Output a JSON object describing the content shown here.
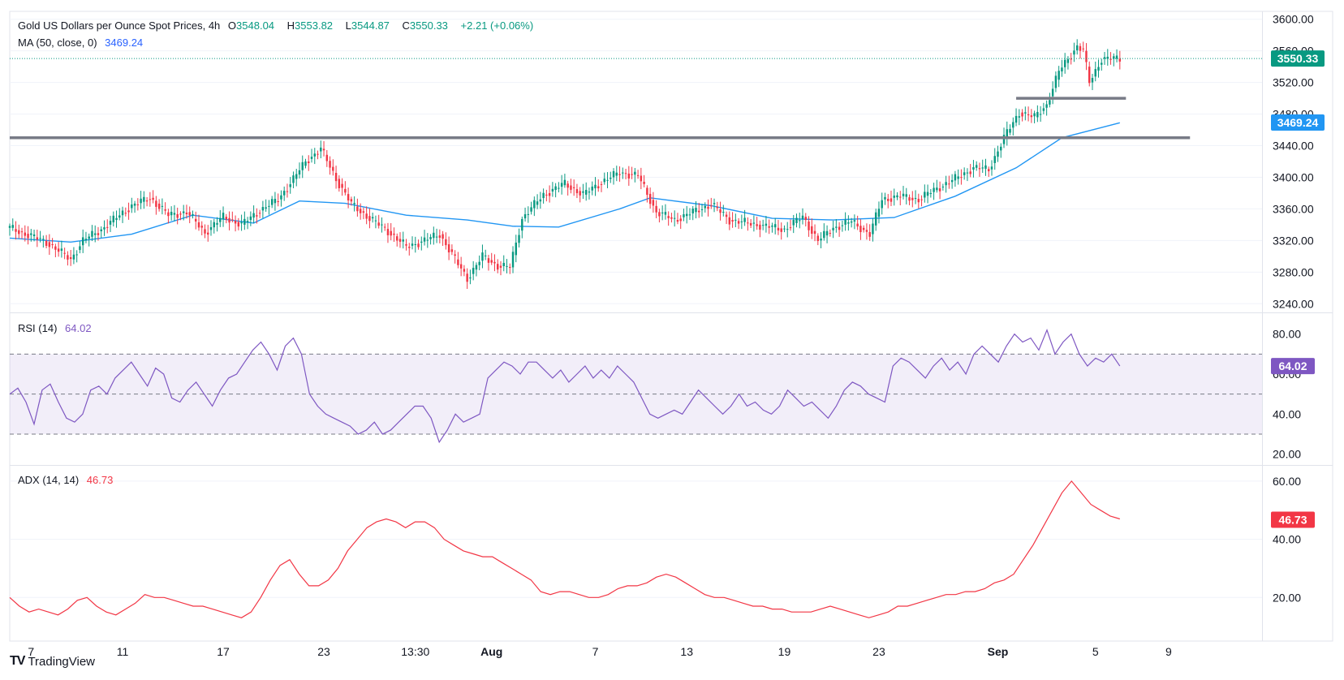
{
  "header": {
    "symbol": "Gold US Dollars per Ounce Spot Prices, 4h",
    "open_label": "O",
    "open": "3548.04",
    "high_label": "H",
    "high": "3553.82",
    "low_label": "L",
    "low": "3544.87",
    "close_label": "C",
    "close": "3550.33",
    "change": "+2.21 (+0.06%)"
  },
  "ma_legend": {
    "label": "MA (50, close, 0)",
    "value": "3469.24"
  },
  "rsi_legend": {
    "label": "RSI (14)",
    "value": "64.02"
  },
  "adx_legend": {
    "label": "ADX (14, 14)",
    "value": "46.73"
  },
  "brand": {
    "logo": "TV",
    "name": "TradingView"
  },
  "colors": {
    "up": "#089981",
    "down": "#f23645",
    "ma": "#2196f3",
    "rsi": "#7e57c2",
    "adx": "#f23645",
    "support": "#787b86"
  },
  "chart_data": [
    {
      "type": "candlestick",
      "title": "Gold US Dollars per Ounce Spot Prices, 4h",
      "ylim": [
        3230,
        3610
      ],
      "yticks": [
        3240,
        3280,
        3320,
        3360,
        3400,
        3440,
        3480,
        3520,
        3560,
        3600
      ],
      "xtick_labels": [
        "7",
        "11",
        "17",
        "23",
        "13:30",
        "Aug",
        "7",
        "13",
        "19",
        "23",
        "Sep",
        "5",
        "9"
      ],
      "price_label": "3550.33",
      "ma_label": "3469.24",
      "close_path": [
        [
          0,
          3336
        ],
        [
          12,
          3318
        ],
        [
          20,
          3296
        ],
        [
          24,
          3320
        ],
        [
          30,
          3334
        ],
        [
          40,
          3364
        ],
        [
          46,
          3374
        ],
        [
          52,
          3352
        ],
        [
          58,
          3356
        ],
        [
          64,
          3330
        ],
        [
          70,
          3350
        ],
        [
          76,
          3340
        ],
        [
          82,
          3358
        ],
        [
          88,
          3372
        ],
        [
          93,
          3398
        ],
        [
          97,
          3420
        ],
        [
          102,
          3436
        ],
        [
          107,
          3398
        ],
        [
          112,
          3366
        ],
        [
          118,
          3348
        ],
        [
          124,
          3332
        ],
        [
          130,
          3312
        ],
        [
          136,
          3320
        ],
        [
          141,
          3328
        ],
        [
          146,
          3296
        ],
        [
          150,
          3272
        ],
        [
          155,
          3300
        ],
        [
          160,
          3288
        ],
        [
          164,
          3286
        ],
        [
          168,
          3348
        ],
        [
          175,
          3378
        ],
        [
          182,
          3392
        ],
        [
          188,
          3378
        ],
        [
          194,
          3394
        ],
        [
          200,
          3406
        ],
        [
          206,
          3402
        ],
        [
          212,
          3356
        ],
        [
          218,
          3346
        ],
        [
          224,
          3356
        ],
        [
          230,
          3366
        ],
        [
          236,
          3346
        ],
        [
          242,
          3342
        ],
        [
          248,
          3338
        ],
        [
          254,
          3334
        ],
        [
          260,
          3350
        ],
        [
          265,
          3320
        ],
        [
          270,
          3336
        ],
        [
          276,
          3344
        ],
        [
          282,
          3328
        ],
        [
          286,
          3372
        ],
        [
          292,
          3376
        ],
        [
          298,
          3372
        ],
        [
          304,
          3386
        ],
        [
          310,
          3398
        ],
        [
          316,
          3412
        ],
        [
          321,
          3410
        ],
        [
          326,
          3450
        ],
        [
          331,
          3482
        ],
        [
          336,
          3476
        ],
        [
          340,
          3492
        ],
        [
          344,
          3534
        ],
        [
          350,
          3566
        ],
        [
          352,
          3560
        ],
        [
          354,
          3520
        ],
        [
          358,
          3550
        ],
        [
          364,
          3550
        ]
      ],
      "ma_path": [
        [
          0,
          3323
        ],
        [
          20,
          3318
        ],
        [
          40,
          3328
        ],
        [
          60,
          3352
        ],
        [
          80,
          3342
        ],
        [
          95,
          3370
        ],
        [
          110,
          3367
        ],
        [
          130,
          3352
        ],
        [
          150,
          3346
        ],
        [
          165,
          3338
        ],
        [
          180,
          3337
        ],
        [
          200,
          3360
        ],
        [
          210,
          3374
        ],
        [
          230,
          3364
        ],
        [
          250,
          3348
        ],
        [
          270,
          3346
        ],
        [
          290,
          3349
        ],
        [
          310,
          3376
        ],
        [
          330,
          3412
        ],
        [
          345,
          3450
        ],
        [
          364,
          3469
        ]
      ],
      "support_levels": [
        {
          "value": 3500,
          "from": 330,
          "to": 366
        },
        {
          "value": 3450,
          "from": 0,
          "to": 387
        }
      ],
      "annotation": "dotted line marks last close"
    },
    {
      "type": "line",
      "title": "RSI (14)",
      "ylim": [
        15,
        90
      ],
      "yticks": [
        20,
        40,
        60,
        80
      ],
      "bands": [
        30,
        50,
        70
      ],
      "value_label": "64.02",
      "values": [
        50,
        53,
        46,
        35,
        52,
        55,
        46,
        38,
        36,
        40,
        52,
        54,
        50,
        58,
        62,
        66,
        60,
        54,
        63,
        60,
        48,
        46,
        52,
        56,
        50,
        44,
        52,
        58,
        60,
        66,
        72,
        76,
        70,
        62,
        74,
        78,
        70,
        50,
        44,
        40,
        38,
        36,
        34,
        30,
        32,
        36,
        30,
        32,
        36,
        40,
        44,
        44,
        38,
        26,
        32,
        40,
        36,
        38,
        40,
        58,
        62,
        66,
        64,
        60,
        66,
        66,
        62,
        58,
        62,
        56,
        60,
        64,
        58,
        62,
        58,
        64,
        60,
        56,
        48,
        40,
        38,
        40,
        42,
        40,
        46,
        52,
        48,
        44,
        40,
        44,
        50,
        44,
        46,
        42,
        40,
        44,
        52,
        48,
        44,
        46,
        42,
        38,
        44,
        52,
        56,
        54,
        50,
        48,
        46,
        64,
        68,
        66,
        62,
        58,
        64,
        68,
        62,
        66,
        60,
        70,
        74,
        70,
        66,
        74,
        80,
        76,
        78,
        72,
        82,
        70,
        76,
        80,
        70,
        64,
        68,
        66,
        70,
        64
      ]
    },
    {
      "type": "line",
      "title": "ADX (14, 14)",
      "ylim": [
        5,
        65
      ],
      "yticks": [
        20,
        40,
        60
      ],
      "value_label": "46.73",
      "values": [
        20,
        17,
        15,
        16,
        15,
        14,
        16,
        19,
        20,
        17,
        15,
        14,
        16,
        18,
        21,
        20,
        20,
        19,
        18,
        17,
        17,
        16,
        15,
        14,
        13,
        15,
        20,
        26,
        31,
        33,
        28,
        24,
        24,
        26,
        30,
        36,
        40,
        44,
        46,
        47,
        46,
        44,
        46,
        46,
        44,
        40,
        38,
        36,
        35,
        34,
        34,
        32,
        30,
        28,
        26,
        22,
        21,
        22,
        22,
        21,
        20,
        20,
        21,
        23,
        24,
        24,
        25,
        27,
        28,
        27,
        25,
        23,
        21,
        20,
        20,
        19,
        18,
        17,
        17,
        16,
        16,
        15,
        15,
        15,
        16,
        17,
        16,
        15,
        14,
        13,
        14,
        15,
        17,
        17,
        18,
        19,
        20,
        21,
        21,
        22,
        22,
        23,
        25,
        26,
        28,
        33,
        38,
        44,
        50,
        56,
        60,
        56,
        52,
        50,
        48,
        47
      ]
    }
  ]
}
